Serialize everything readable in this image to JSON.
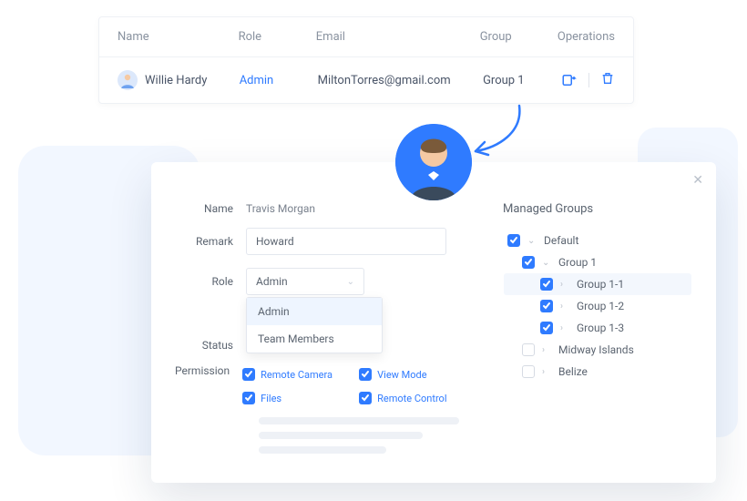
{
  "colors": {
    "primary": "#2f7bff",
    "text_muted": "#8a93a0",
    "text": "#5b6470",
    "border": "#e3e7ee",
    "bg_soft": "#f2f7ff"
  },
  "table": {
    "headers": {
      "name": "Name",
      "role": "Role",
      "email": "Email",
      "group": "Group",
      "ops": "Operations"
    },
    "row": {
      "name": "Willie Hardy",
      "role": "Admin",
      "email": "MiltonTorres@gmail.com",
      "group": "Group 1"
    }
  },
  "modal": {
    "labels": {
      "name": "Name",
      "remark": "Remark",
      "role": "Role",
      "status": "Status",
      "permission": "Permission"
    },
    "name_value": "Travis Morgan",
    "remark_value": "Howard",
    "role_value": "Admin",
    "role_options": [
      "Admin",
      "Team Members"
    ],
    "permissions": [
      {
        "label": "Remote Camera",
        "checked": true
      },
      {
        "label": "View Mode",
        "checked": true
      },
      {
        "label": "Files",
        "checked": true
      },
      {
        "label": "Remote Control",
        "checked": true
      }
    ],
    "groups_title": "Managed Groups",
    "tree": [
      {
        "label": "Default",
        "indent": 0,
        "checked": true,
        "expand": "down"
      },
      {
        "label": "Group 1",
        "indent": 1,
        "checked": true,
        "expand": "down"
      },
      {
        "label": "Group 1-1",
        "indent": 2,
        "checked": true,
        "expand": "right",
        "hl": true
      },
      {
        "label": "Group 1-2",
        "indent": 2,
        "checked": true,
        "expand": "right"
      },
      {
        "label": "Group 1-3",
        "indent": 2,
        "checked": true,
        "expand": "right"
      },
      {
        "label": "Midway Islands",
        "indent": 1,
        "checked": false,
        "expand": "right"
      },
      {
        "label": "Belize",
        "indent": 1,
        "checked": false,
        "expand": "right"
      }
    ]
  }
}
